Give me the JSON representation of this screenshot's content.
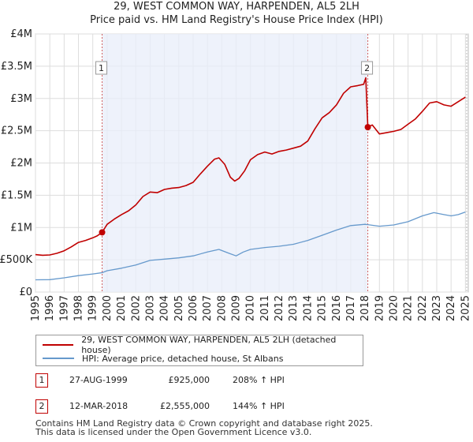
{
  "title_line1": "29, WEST COMMON WAY, HARPENDEN, AL5 2LH",
  "title_line2": "Price paid vs. HM Land Registry's House Price Index (HPI)",
  "chart_data": {
    "type": "line",
    "title": "29, WEST COMMON WAY, HARPENDEN, AL5 2LH — Price paid vs. HM Land Registry's House Price Index (HPI)",
    "xlabel": "",
    "ylabel": "",
    "xlim": [
      1995,
      2025.2
    ],
    "ylim": [
      0,
      4000000
    ],
    "y_ticks": [
      0,
      500000,
      1000000,
      1500000,
      2000000,
      2500000,
      3000000,
      3500000,
      4000000
    ],
    "y_tick_labels": [
      "£0",
      "£500K",
      "£1M",
      "£1.5M",
      "£2M",
      "£2.5M",
      "£3M",
      "£3.5M",
      "£4M"
    ],
    "x_ticks": [
      1995,
      1996,
      1997,
      1998,
      1999,
      2000,
      2001,
      2002,
      2003,
      2004,
      2005,
      2006,
      2007,
      2008,
      2009,
      2010,
      2011,
      2012,
      2013,
      2014,
      2015,
      2016,
      2017,
      2018,
      2019,
      2020,
      2021,
      2022,
      2023,
      2024,
      2025
    ],
    "grid": true,
    "series": [
      {
        "name": "29, WEST COMMON WAY, HARPENDEN, AL5 2LH (detached house)",
        "color": "#c00000",
        "points": [
          [
            1995.0,
            580000
          ],
          [
            1995.5,
            570000
          ],
          [
            1996.0,
            575000
          ],
          [
            1996.5,
            600000
          ],
          [
            1997.0,
            640000
          ],
          [
            1997.5,
            700000
          ],
          [
            1998.0,
            770000
          ],
          [
            1998.5,
            800000
          ],
          [
            1999.0,
            840000
          ],
          [
            1999.3,
            870000
          ],
          [
            1999.65,
            925000
          ],
          [
            2000.0,
            1050000
          ],
          [
            2000.5,
            1130000
          ],
          [
            2001.0,
            1200000
          ],
          [
            2001.5,
            1260000
          ],
          [
            2002.0,
            1350000
          ],
          [
            2002.5,
            1480000
          ],
          [
            2003.0,
            1550000
          ],
          [
            2003.5,
            1540000
          ],
          [
            2004.0,
            1590000
          ],
          [
            2004.5,
            1610000
          ],
          [
            2005.0,
            1620000
          ],
          [
            2005.5,
            1650000
          ],
          [
            2006.0,
            1700000
          ],
          [
            2006.5,
            1830000
          ],
          [
            2007.0,
            1950000
          ],
          [
            2007.5,
            2060000
          ],
          [
            2007.8,
            2080000
          ],
          [
            2008.2,
            1980000
          ],
          [
            2008.6,
            1780000
          ],
          [
            2008.9,
            1720000
          ],
          [
            2009.2,
            1760000
          ],
          [
            2009.6,
            1880000
          ],
          [
            2010.0,
            2050000
          ],
          [
            2010.5,
            2130000
          ],
          [
            2011.0,
            2170000
          ],
          [
            2011.5,
            2140000
          ],
          [
            2012.0,
            2180000
          ],
          [
            2012.5,
            2200000
          ],
          [
            2013.0,
            2230000
          ],
          [
            2013.5,
            2260000
          ],
          [
            2014.0,
            2340000
          ],
          [
            2014.5,
            2530000
          ],
          [
            2015.0,
            2700000
          ],
          [
            2015.5,
            2780000
          ],
          [
            2016.0,
            2900000
          ],
          [
            2016.5,
            3080000
          ],
          [
            2017.0,
            3180000
          ],
          [
            2017.5,
            3200000
          ],
          [
            2017.9,
            3220000
          ],
          [
            2018.05,
            3320000
          ],
          [
            2018.19,
            2555000
          ],
          [
            2018.5,
            2590000
          ],
          [
            2019.0,
            2450000
          ],
          [
            2019.5,
            2470000
          ],
          [
            2020.0,
            2490000
          ],
          [
            2020.5,
            2520000
          ],
          [
            2021.0,
            2600000
          ],
          [
            2021.5,
            2680000
          ],
          [
            2022.0,
            2800000
          ],
          [
            2022.5,
            2930000
          ],
          [
            2023.0,
            2950000
          ],
          [
            2023.5,
            2900000
          ],
          [
            2024.0,
            2880000
          ],
          [
            2024.5,
            2950000
          ],
          [
            2025.0,
            3020000
          ]
        ]
      },
      {
        "name": "HPI: Average price, detached house, St Albans",
        "color": "#6699cc",
        "points": [
          [
            1995.0,
            190000
          ],
          [
            1996.0,
            192000
          ],
          [
            1997.0,
            220000
          ],
          [
            1998.0,
            255000
          ],
          [
            1999.0,
            280000
          ],
          [
            1999.65,
            300000
          ],
          [
            2000.0,
            330000
          ],
          [
            2001.0,
            370000
          ],
          [
            2002.0,
            420000
          ],
          [
            2003.0,
            490000
          ],
          [
            2004.0,
            510000
          ],
          [
            2005.0,
            530000
          ],
          [
            2006.0,
            560000
          ],
          [
            2007.0,
            620000
          ],
          [
            2007.8,
            660000
          ],
          [
            2008.5,
            600000
          ],
          [
            2009.0,
            560000
          ],
          [
            2009.5,
            620000
          ],
          [
            2010.0,
            660000
          ],
          [
            2011.0,
            690000
          ],
          [
            2012.0,
            710000
          ],
          [
            2013.0,
            740000
          ],
          [
            2014.0,
            800000
          ],
          [
            2015.0,
            880000
          ],
          [
            2016.0,
            960000
          ],
          [
            2017.0,
            1030000
          ],
          [
            2018.0,
            1050000
          ],
          [
            2018.19,
            1045000
          ],
          [
            2019.0,
            1020000
          ],
          [
            2020.0,
            1040000
          ],
          [
            2021.0,
            1090000
          ],
          [
            2022.0,
            1180000
          ],
          [
            2022.8,
            1230000
          ],
          [
            2023.5,
            1200000
          ],
          [
            2024.0,
            1180000
          ],
          [
            2024.5,
            1200000
          ],
          [
            2025.0,
            1240000
          ]
        ]
      }
    ],
    "sales": [
      {
        "id": "1",
        "x": 1999.65,
        "price": 925000
      },
      {
        "id": "2",
        "x": 2018.19,
        "price": 2555000
      }
    ]
  },
  "legend": {
    "property_label": "29, WEST COMMON WAY, HARPENDEN, AL5 2LH (detached house)",
    "hpi_label": "HPI: Average price, detached house, St Albans",
    "property_color": "#c00000",
    "hpi_color": "#6699cc"
  },
  "sales_table": [
    {
      "id": "1",
      "date": "27-AUG-1999",
      "price": "£925,000",
      "hpi": "208% ↑ HPI"
    },
    {
      "id": "2",
      "date": "12-MAR-2018",
      "price": "£2,555,000",
      "hpi": "144% ↑ HPI"
    }
  ],
  "footer": {
    "line1": "Contains HM Land Registry data © Crown copyright and database right 2025.",
    "line2": "This data is licensed under the Open Government Licence v3.0."
  }
}
